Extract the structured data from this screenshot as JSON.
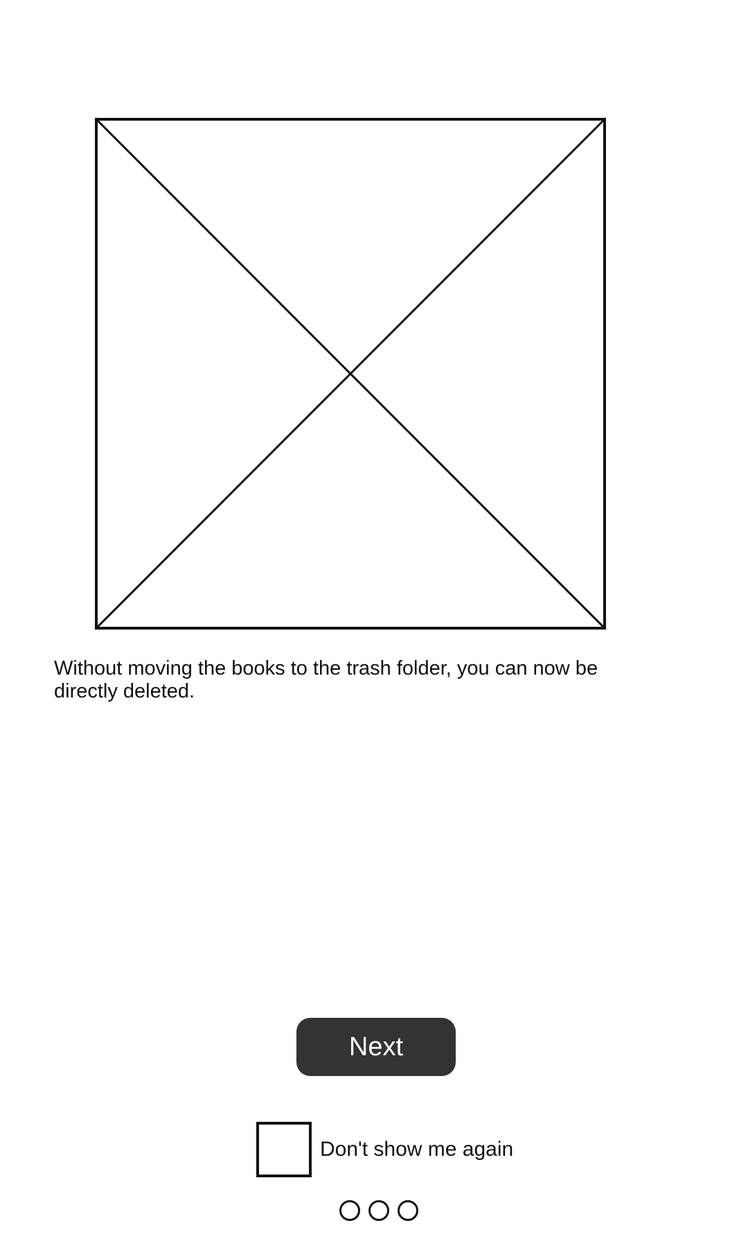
{
  "onboarding": {
    "image_icon": "image-placeholder-icon",
    "description": "Without moving the books to the trash folder, you can now be directly deleted.",
    "next_label": "Next",
    "dont_show_label": "Don't show me again",
    "dont_show_checked": false,
    "page_count": 3
  },
  "colors": {
    "button_bg": "#333333",
    "button_text": "#ffffff",
    "stroke": "#111111",
    "background": "#ffffff"
  }
}
